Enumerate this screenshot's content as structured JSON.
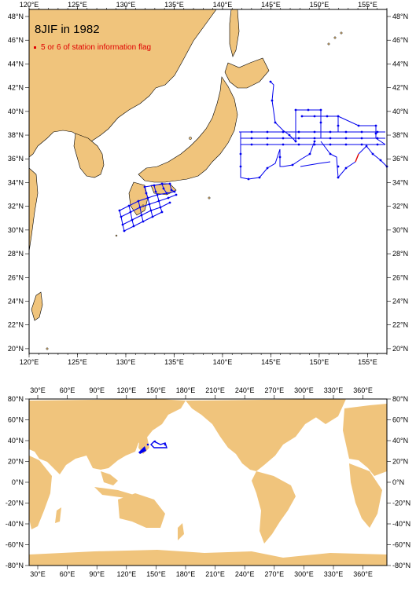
{
  "title": "8JIF in 1982",
  "legend": {
    "label": "5 or 6 of station information flag",
    "color": "#e00000"
  },
  "colors": {
    "land": "#f0c47c",
    "ocean": "#ffffff",
    "track": "#0000ee",
    "flag": "#e00000",
    "frame": "#000000"
  },
  "regional_map": {
    "lon_labels": [
      "120°E",
      "125°E",
      "130°E",
      "135°E",
      "140°E",
      "145°E",
      "150°E",
      "155°E"
    ],
    "lat_labels": [
      "48°N",
      "46°N",
      "44°N",
      "42°N",
      "40°N",
      "38°N",
      "36°N",
      "34°N",
      "32°N",
      "30°N",
      "28°N",
      "26°N",
      "24°N",
      "22°N",
      "20°N"
    ]
  },
  "world_map": {
    "lon_labels": [
      "30°E",
      "60°E",
      "90°E",
      "120°E",
      "150°E",
      "180°E",
      "210°E",
      "240°E",
      "270°E",
      "300°E",
      "330°E",
      "360°E"
    ],
    "lat_labels": [
      "80°N",
      "60°N",
      "40°N",
      "20°N",
      "0°N",
      "-20°N",
      "-40°N",
      "-60°N",
      "-80°N"
    ]
  }
}
